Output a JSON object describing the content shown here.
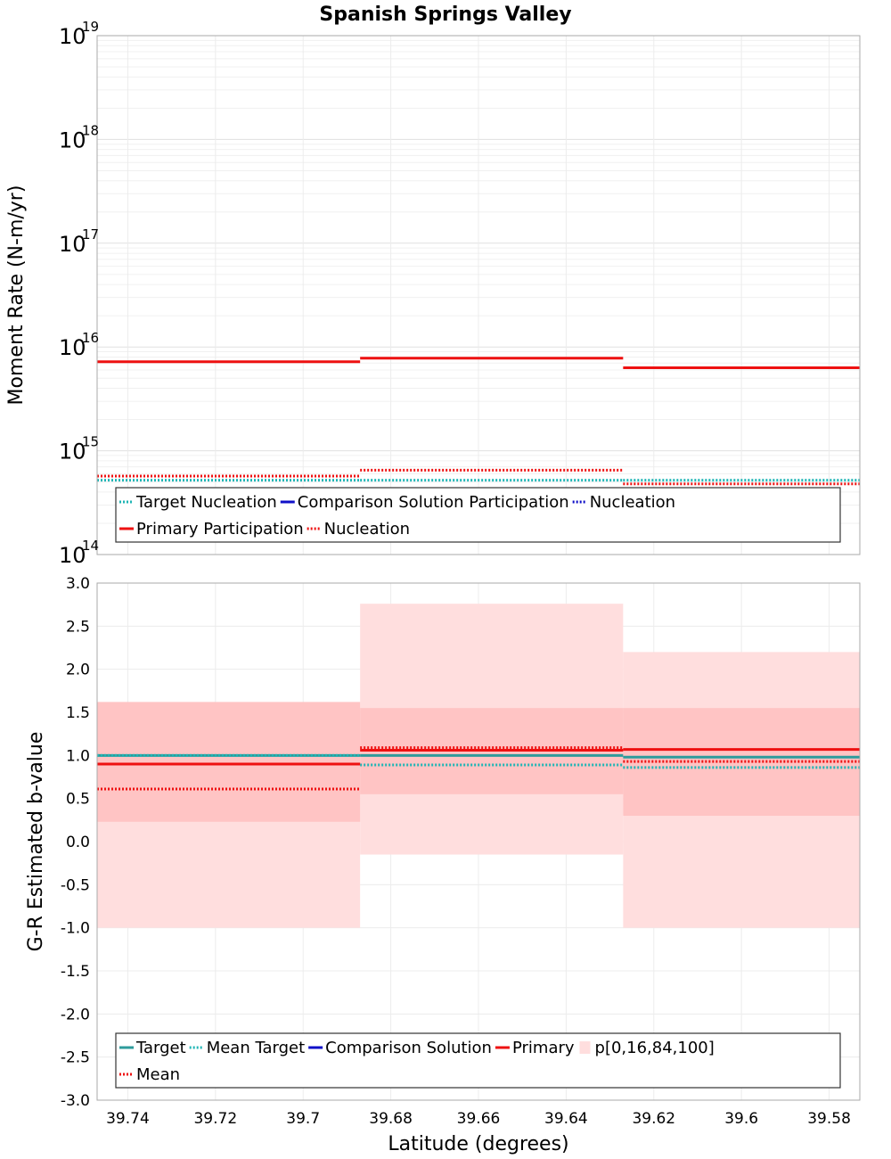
{
  "title": "Spanish Springs Valley",
  "chart_data": [
    {
      "type": "line",
      "step": true,
      "ylabel": "Moment Rate (N-m/yr)",
      "yscale": "log",
      "ylim": [
        100000000000000.0,
        1e+19
      ],
      "yticks": [
        {
          "base": "10",
          "exp": "14"
        },
        {
          "base": "10",
          "exp": "15"
        },
        {
          "base": "10",
          "exp": "16"
        },
        {
          "base": "10",
          "exp": "17"
        },
        {
          "base": "10",
          "exp": "18"
        },
        {
          "base": "10",
          "exp": "19"
        }
      ],
      "xlim": [
        39.747,
        39.573
      ],
      "x_reversed": true,
      "grid": true,
      "bin_edges": [
        39.747,
        39.687,
        39.627,
        39.573
      ],
      "series": [
        {
          "name": "Target Nucleation",
          "color": "#1fb5b5",
          "dash": "dotted",
          "values": [
            520000000000000.0,
            520000000000000.0,
            520000000000000.0
          ]
        },
        {
          "name": "Primary Participation",
          "color": "#ee1111",
          "dash": "solid",
          "values": [
            7200000000000000.0,
            7800000000000000.0,
            6300000000000000.0
          ]
        },
        {
          "name": "Nucleation",
          "color": "#ee1111",
          "dash": "dotted",
          "values": [
            570000000000000.0,
            650000000000000.0,
            480000000000000.0
          ]
        }
      ],
      "legend": {
        "position": "bottom",
        "rows": [
          [
            {
              "label": "Target Nucleation",
              "color": "#1fb5b5",
              "style": "dotted"
            },
            {
              "label": "Comparison Solution Participation",
              "color": "#1010c8",
              "style": "solid"
            },
            {
              "label": "Nucleation",
              "color": "#1010c8",
              "style": "dotted"
            }
          ],
          [
            {
              "label": "Primary Participation",
              "color": "#ee1111",
              "style": "solid"
            },
            {
              "label": "Nucleation",
              "color": "#ee1111",
              "style": "dotted"
            }
          ]
        ]
      }
    },
    {
      "type": "line",
      "step": true,
      "ylabel": "G-R Estimated b-value",
      "xlabel": "Latitude (degrees)",
      "ylim": [
        -3.0,
        3.0
      ],
      "yticks": [
        "-3.0",
        "-2.5",
        "-2.0",
        "-1.5",
        "-1.0",
        "-0.5",
        "0.0",
        "0.5",
        "1.0",
        "1.5",
        "2.0",
        "2.5",
        "3.0"
      ],
      "xticks": [
        "39.74",
        "39.72",
        "39.7",
        "39.68",
        "39.66",
        "39.64",
        "39.62",
        "39.6",
        "39.58"
      ],
      "xlim": [
        39.747,
        39.573
      ],
      "x_reversed": true,
      "grid": true,
      "bin_edges": [
        39.747,
        39.687,
        39.627,
        39.573
      ],
      "bands": [
        {
          "name": "p[0,100]",
          "color": "#ffdede",
          "lower": [
            -1.0,
            -0.15,
            -1.0
          ],
          "upper": [
            1.62,
            2.76,
            2.2
          ]
        },
        {
          "name": "p[16,84]",
          "color": "#ffc4c4",
          "lower": [
            0.23,
            0.55,
            0.3
          ],
          "upper": [
            1.62,
            1.55,
            1.55
          ]
        }
      ],
      "series": [
        {
          "name": "Target",
          "color": "#2e9b9b",
          "dash": "solid",
          "values": [
            1.0,
            1.0,
            0.98
          ]
        },
        {
          "name": "Mean Target",
          "color": "#1fb5b5",
          "dash": "dotted",
          "values": [
            1.0,
            0.89,
            0.86
          ]
        },
        {
          "name": "Primary",
          "color": "#ee1111",
          "dash": "solid",
          "values": [
            0.9,
            1.06,
            1.07
          ]
        },
        {
          "name": "Mean",
          "color": "#ee1111",
          "dash": "dotted",
          "values": [
            0.61,
            1.09,
            0.93
          ]
        }
      ],
      "legend": {
        "position": "bottom",
        "rows": [
          [
            {
              "label": "Target",
              "color": "#2e9b9b",
              "style": "solid"
            },
            {
              "label": "Mean Target",
              "color": "#1fb5b5",
              "style": "dotted"
            },
            {
              "label": "Comparison Solution",
              "color": "#1010c8",
              "style": "solid"
            },
            {
              "label": "Primary",
              "color": "#ee1111",
              "style": "solid"
            },
            {
              "label": "p[0,16,84,100]",
              "color": "#ffdede",
              "style": "box"
            }
          ],
          [
            {
              "label": "Mean",
              "color": "#ee1111",
              "style": "dotted"
            }
          ]
        ]
      }
    }
  ]
}
